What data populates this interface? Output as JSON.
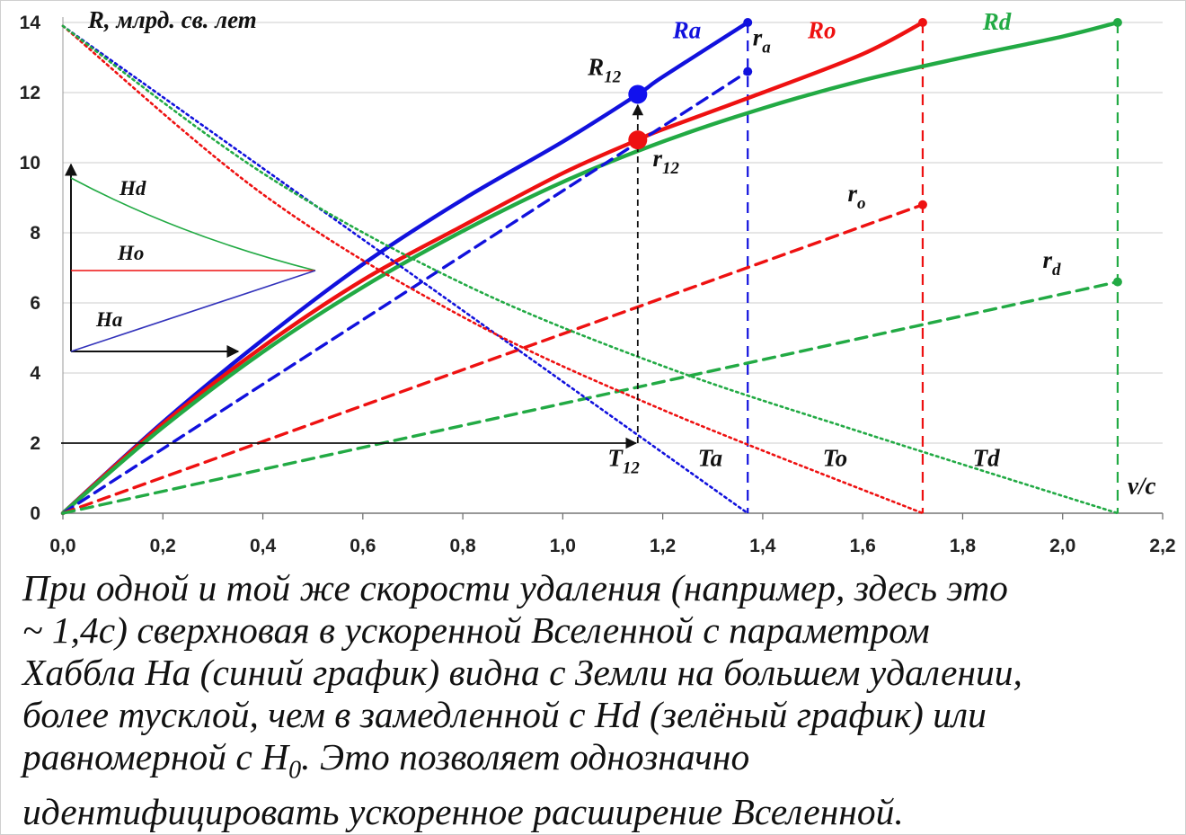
{
  "chart_data": {
    "type": "line",
    "xlabel": "v/c",
    "ylabel": "R, млрд. св. лет",
    "xlim": [
      0,
      2.2
    ],
    "ylim": [
      0,
      14
    ],
    "x_ticks": [
      "0,0",
      "0,2",
      "0,4",
      "0,6",
      "0,8",
      "1,0",
      "1,2",
      "1,4",
      "1,6",
      "1,8",
      "2,0",
      "2,2"
    ],
    "y_ticks": [
      "0",
      "2",
      "4",
      "6",
      "8",
      "10",
      "12",
      "14"
    ],
    "grid": "horizontal",
    "series": [
      {
        "name": "Ra",
        "color": "#1111dd",
        "style": "solid",
        "x": [
          0,
          0.2,
          0.4,
          0.6,
          0.8,
          1.0,
          1.15,
          1.2,
          1.37
        ],
        "y": [
          0,
          2.6,
          4.95,
          7.1,
          8.95,
          10.6,
          11.95,
          12.45,
          14.0
        ]
      },
      {
        "name": "Ro",
        "color": "#ee1111",
        "style": "solid",
        "x": [
          0,
          0.2,
          0.4,
          0.6,
          0.8,
          1.0,
          1.15,
          1.2,
          1.4,
          1.6,
          1.72
        ],
        "y": [
          0,
          2.55,
          4.75,
          6.65,
          8.2,
          9.7,
          10.65,
          10.95,
          12.0,
          13.1,
          14.0
        ]
      },
      {
        "name": "Rd",
        "color": "#22aa44",
        "style": "solid",
        "x": [
          0,
          0.2,
          0.4,
          0.6,
          0.8,
          1.0,
          1.2,
          1.4,
          1.6,
          1.8,
          2.0,
          2.11
        ],
        "y": [
          0,
          2.45,
          4.6,
          6.45,
          8.05,
          9.45,
          10.6,
          11.55,
          12.35,
          13.0,
          13.6,
          14.0
        ]
      },
      {
        "name": "r_a",
        "color": "#1111dd",
        "style": "dashed",
        "x": [
          0,
          1.37
        ],
        "y": [
          0,
          12.6
        ]
      },
      {
        "name": "r_o",
        "color": "#ee1111",
        "style": "dashed",
        "x": [
          0,
          1.72
        ],
        "y": [
          0,
          8.8
        ]
      },
      {
        "name": "r_d",
        "color": "#22aa44",
        "style": "dashed",
        "x": [
          0,
          2.11
        ],
        "y": [
          0,
          6.6
        ]
      },
      {
        "name": "Ta",
        "color": "#1111dd",
        "style": "dotted",
        "x": [
          0,
          1.37
        ],
        "y": [
          13.9,
          0
        ]
      },
      {
        "name": "To",
        "color": "#ee1111",
        "style": "dotted",
        "x": [
          0,
          0.4,
          0.8,
          1.2,
          1.72
        ],
        "y": [
          13.9,
          9.1,
          5.6,
          2.95,
          0
        ]
      },
      {
        "name": "Td",
        "color": "#22aa44",
        "style": "dotted",
        "x": [
          0,
          0.4,
          0.8,
          1.2,
          1.6,
          2.11
        ],
        "y": [
          13.9,
          9.7,
          6.55,
          4.2,
          2.3,
          0
        ]
      }
    ],
    "vertical_markers": [
      {
        "x": 1.37,
        "color": "#1111dd"
      },
      {
        "x": 1.72,
        "color": "#ee1111"
      },
      {
        "x": 2.11,
        "color": "#22aa44"
      }
    ],
    "highlight_points": [
      {
        "name": "R12",
        "x": 1.15,
        "y": 11.95,
        "color": "#1111ee"
      },
      {
        "name": "r12",
        "x": 1.15,
        "y": 10.65,
        "color": "#ee1111"
      }
    ],
    "annotations": [
      {
        "text": "Ra",
        "x": 1.22,
        "y": 13.55,
        "color": "#1111dd"
      },
      {
        "text": "r",
        "sub": "a",
        "x": 1.38,
        "y": 13.35,
        "color": "#111111"
      },
      {
        "text": "Ro",
        "x": 1.49,
        "y": 13.55,
        "color": "#ee1111"
      },
      {
        "text": "Rd",
        "x": 1.84,
        "y": 13.8,
        "color": "#22aa44"
      },
      {
        "text": "R",
        "sub": "12",
        "x": 1.05,
        "y": 12.5,
        "color": "#111111"
      },
      {
        "text": "r",
        "sub": "12",
        "x": 1.18,
        "y": 9.9,
        "color": "#111111"
      },
      {
        "text": "r",
        "sub": "o",
        "x": 1.57,
        "y": 8.9,
        "color": "#111111"
      },
      {
        "text": "r",
        "sub": "d",
        "x": 1.96,
        "y": 7.0,
        "color": "#111111"
      },
      {
        "text": "T",
        "sub": "12",
        "x": 1.09,
        "y": 1.35,
        "color": "#111111"
      },
      {
        "text": "Ta",
        "x": 1.27,
        "y": 1.35,
        "color": "#111111"
      },
      {
        "text": "To",
        "x": 1.52,
        "y": 1.35,
        "color": "#111111"
      },
      {
        "text": "Td",
        "x": 1.82,
        "y": 1.35,
        "color": "#111111"
      },
      {
        "text": "v/c",
        "x": 2.13,
        "y": 0.55,
        "color": "#111111"
      },
      {
        "text": "R, млрд. св. лет",
        "x": 0.05,
        "y": 13.85,
        "color": "#111111"
      }
    ],
    "inset": {
      "labels": [
        "Hd",
        "Ho",
        "Ha"
      ],
      "colors": {
        "Hd": "#22aa44",
        "Ho": "#ee1111",
        "Ha": "#3333bb"
      }
    }
  },
  "caption": [
    "При одной и той же скорости удаления (например, здесь это",
    "~ 1,4с) сверхновая в ускоренной Вселенной с параметром",
    "Хаббла Ha (синий график) видна с Земли на большем удалении,",
    "более тусклой, чем в замедленной с Hd (зелёный график) или",
    "равномерной с H",
    "0",
    ". Это позволяет однозначно",
    "идентифицировать ускоренное расширение Вселенной."
  ]
}
